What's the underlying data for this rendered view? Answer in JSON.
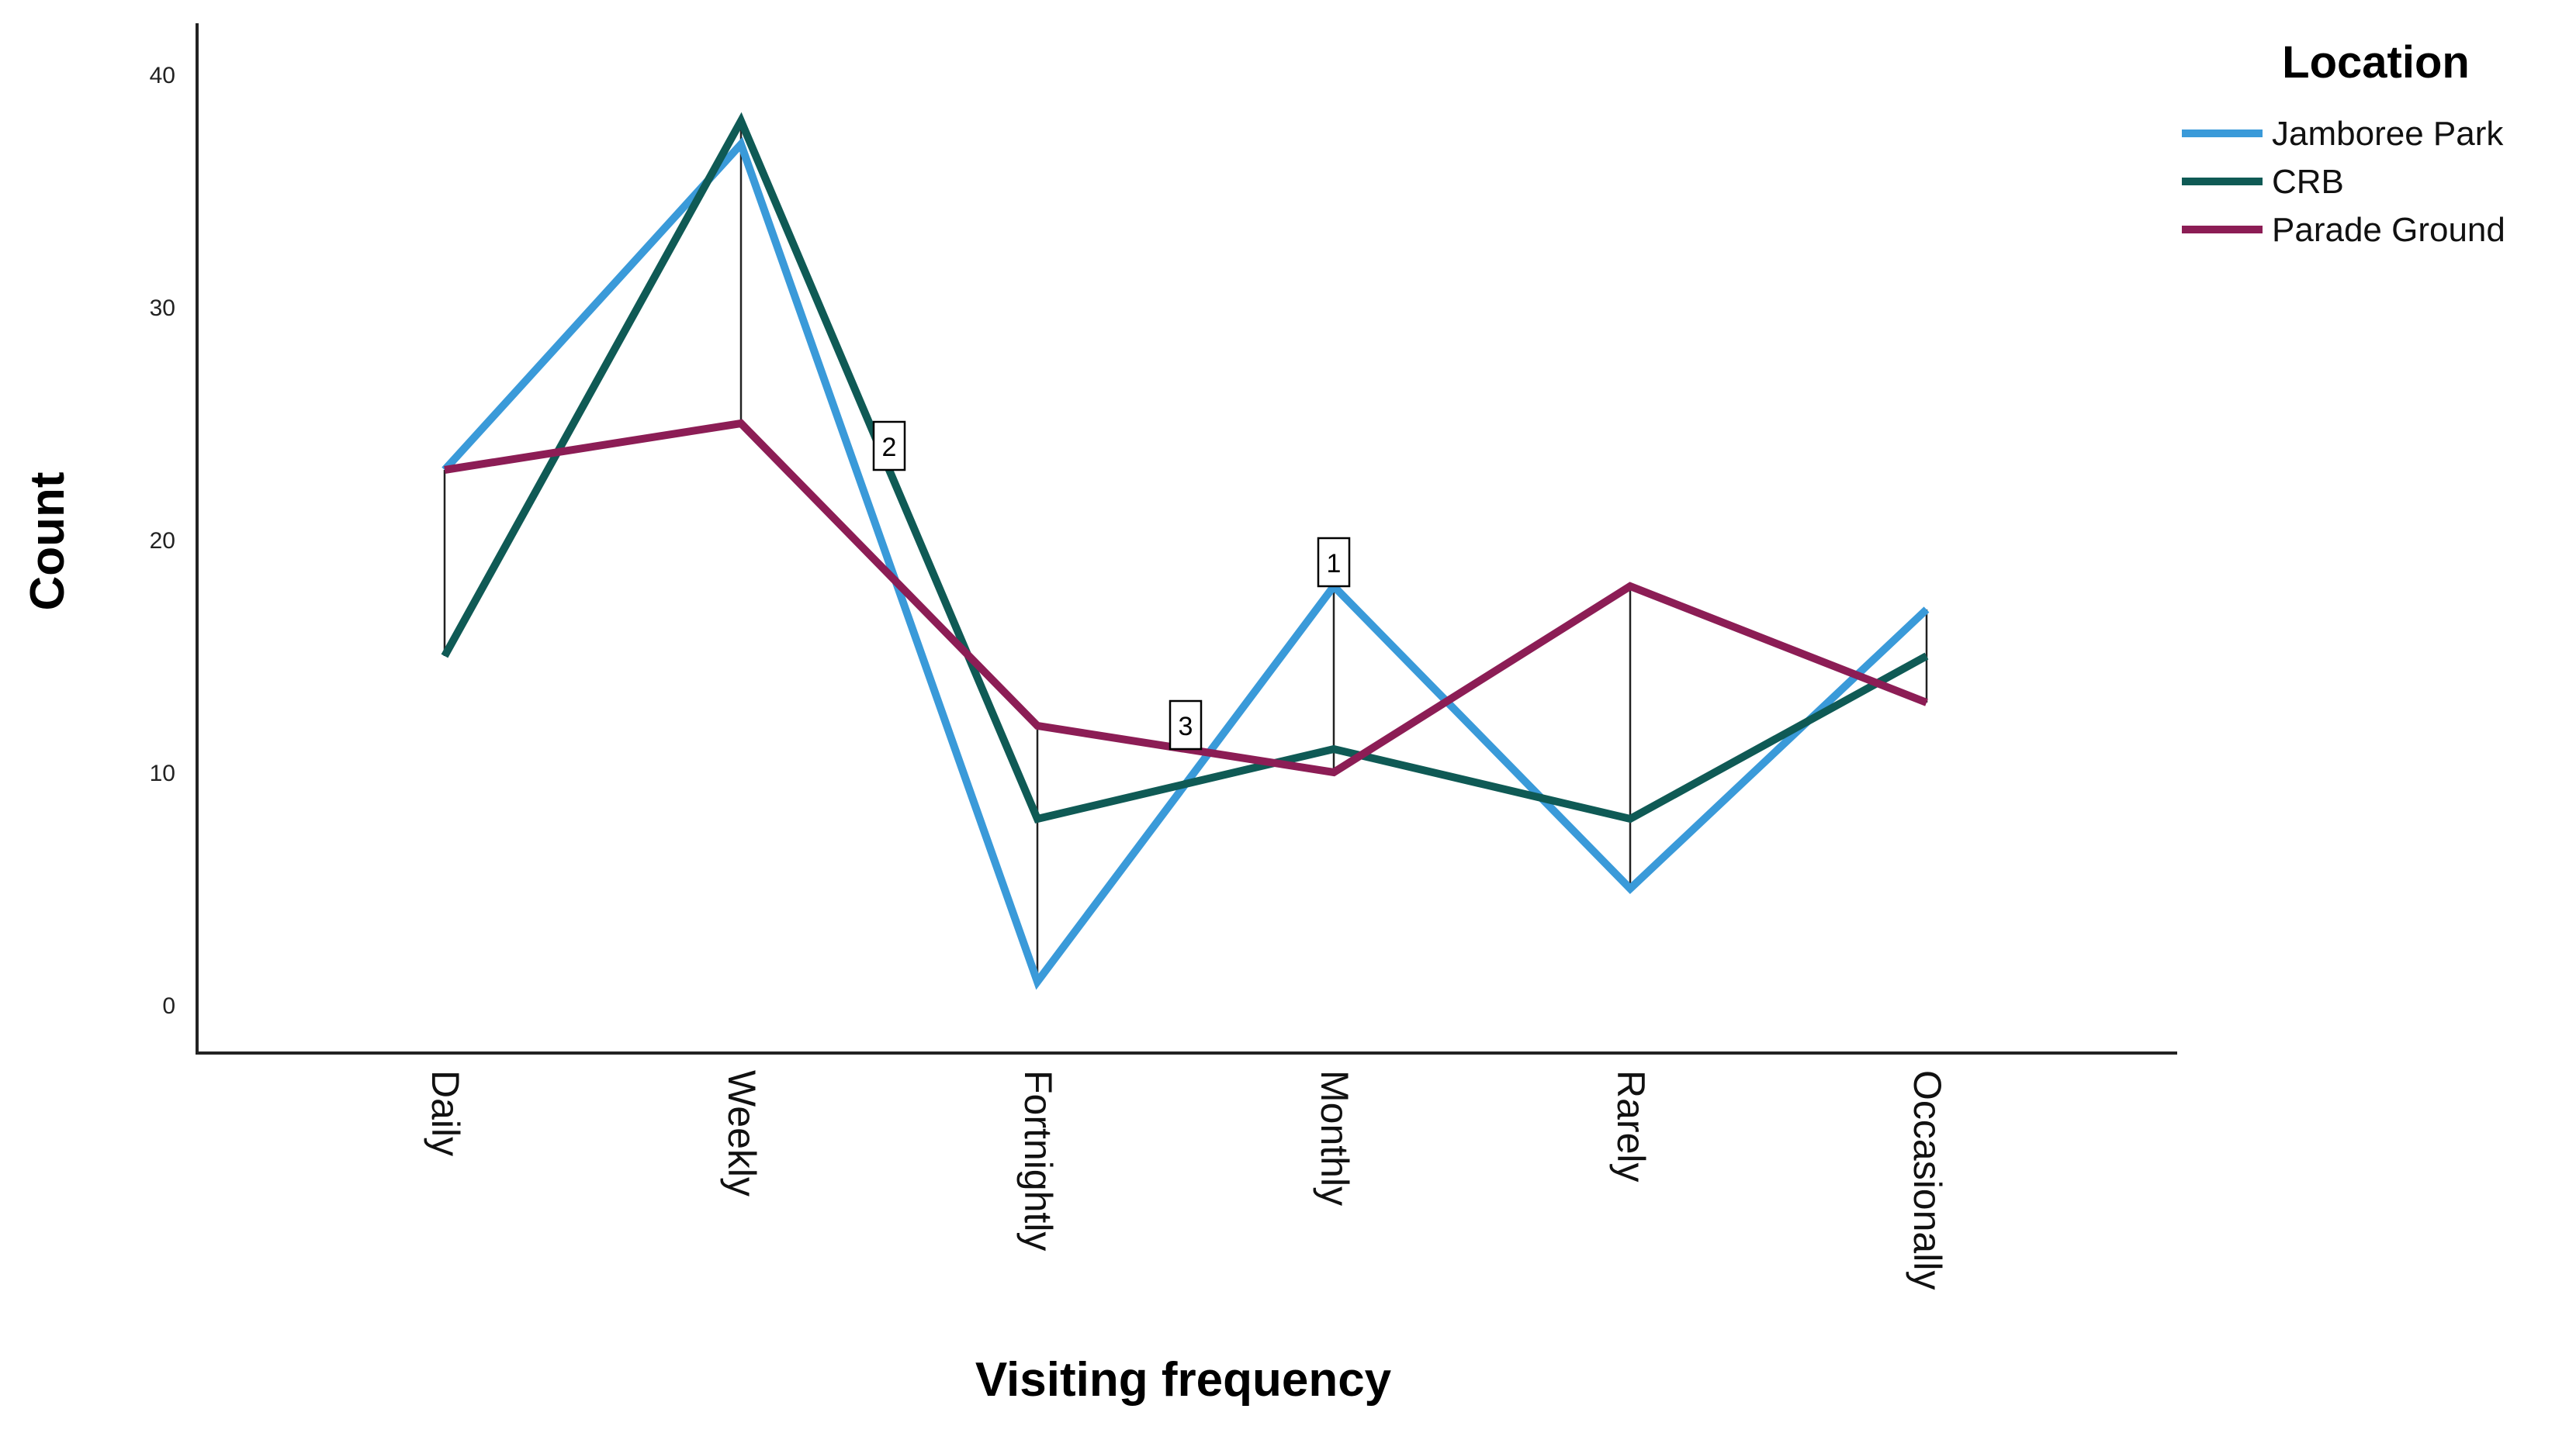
{
  "chart_data": {
    "type": "line",
    "title": "",
    "xlabel": "Visiting frequency",
    "ylabel": "Count",
    "ylim": [
      0,
      40
    ],
    "yticks": [
      0,
      10,
      20,
      30,
      40
    ],
    "grid": false,
    "legend_title": "Location",
    "legend_position": "top-right",
    "categories": [
      "Daily",
      "Weekly",
      "Fortnightly",
      "Monthly",
      "Rarely",
      "Occasionally"
    ],
    "series": [
      {
        "name": "Jamboree Park",
        "color": "#3a9ad9",
        "values": [
          23,
          37,
          1,
          18,
          5,
          17
        ]
      },
      {
        "name": "CRB",
        "color": "#0f5a55",
        "values": [
          15,
          38,
          8,
          11,
          8,
          15
        ]
      },
      {
        "name": "Parade Ground",
        "color": "#8c1d55",
        "values": [
          23,
          25,
          12,
          10,
          18,
          13
        ]
      }
    ],
    "range_lines": true,
    "annotations": [
      {
        "text": "2",
        "x": 1.5,
        "y": 24
      },
      {
        "text": "1",
        "x": 3,
        "y": 19
      },
      {
        "text": "3",
        "x": 2.5,
        "y": 12
      }
    ]
  }
}
